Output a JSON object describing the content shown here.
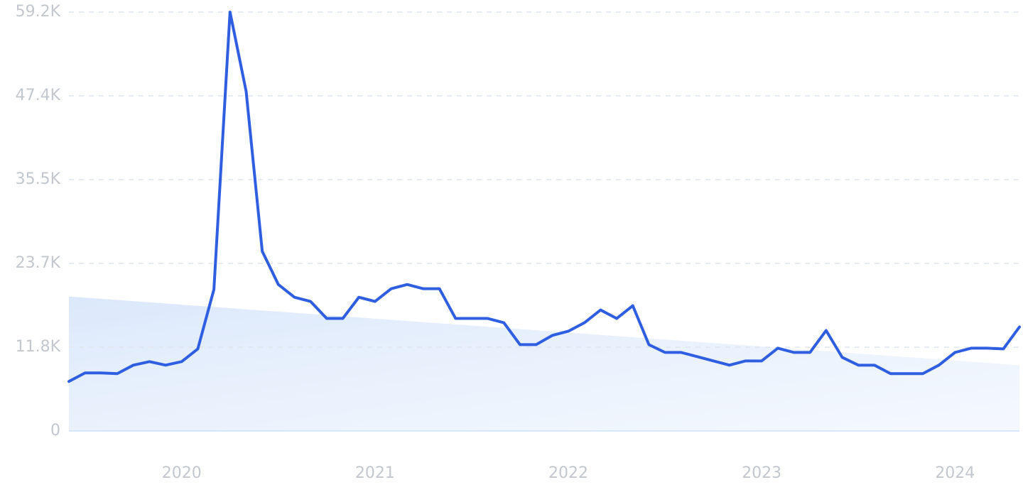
{
  "chart_data": {
    "type": "line",
    "categories": [
      null,
      null,
      null,
      null,
      null,
      null,
      null,
      "2020",
      null,
      null,
      null,
      null,
      null,
      null,
      null,
      null,
      null,
      null,
      null,
      "2021",
      null,
      null,
      null,
      null,
      null,
      null,
      null,
      null,
      null,
      null,
      null,
      "2022",
      null,
      null,
      null,
      null,
      null,
      null,
      null,
      null,
      null,
      null,
      null,
      "2023",
      null,
      null,
      null,
      null,
      null,
      null,
      null,
      null,
      null,
      null,
      null,
      "2024",
      null,
      null,
      null,
      null
    ],
    "values": [
      7000,
      8200,
      8200,
      8100,
      9300,
      9800,
      9300,
      9800,
      11600,
      20000,
      59200,
      48000,
      25400,
      20700,
      18900,
      18300,
      15900,
      15900,
      18900,
      18300,
      20100,
      20700,
      20100,
      20100,
      15900,
      15900,
      15900,
      15300,
      12200,
      12200,
      13500,
      14100,
      15300,
      17100,
      15900,
      17700,
      12200,
      11100,
      11100,
      10500,
      9900,
      9300,
      9900,
      9900,
      11700,
      11100,
      11100,
      14200,
      10400,
      9300,
      9300,
      8100,
      8100,
      8100,
      9300,
      11100,
      11700,
      11700,
      11600,
      14700
    ],
    "color": "#2f5fe0",
    "trend": [
      19000,
      9300
    ],
    "trend_color": "#dbe8fb",
    "ylim": [
      0,
      59200
    ],
    "yticks": [
      0,
      {
        "value": 11840,
        "label": "11.8K"
      },
      {
        "value": 23680,
        "label": "23.7K"
      },
      {
        "value": 35520,
        "label": "35.5K"
      },
      {
        "value": 47360,
        "label": "47.4K"
      },
      {
        "value": 59200,
        "label": "59.2K"
      }
    ],
    "grid": true
  }
}
